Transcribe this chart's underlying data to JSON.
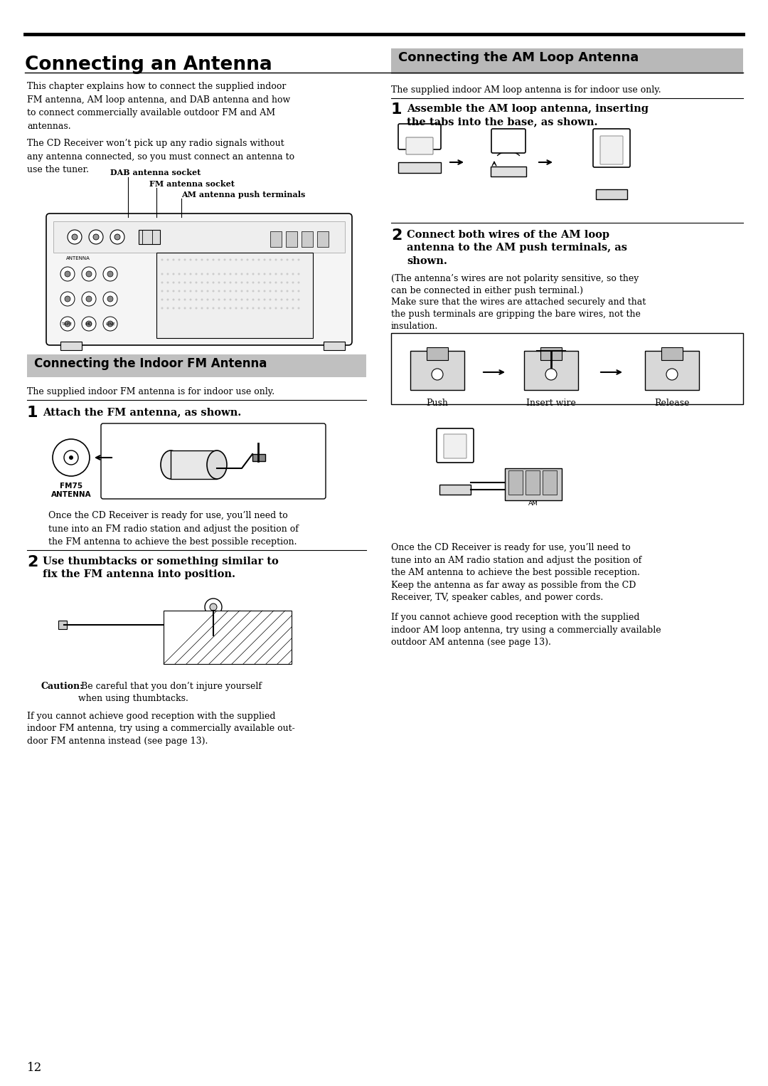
{
  "page_number": "12",
  "main_title": "Connecting an Antenna",
  "bg_color": "#ffffff",
  "text_color": "#000000",
  "section_bg_color": "#cccccc",
  "left_col": {
    "intro_para1": "This chapter explains how to connect the supplied indoor\nFM antenna, AM loop antenna, and DAB antenna and how\nto connect commercially available outdoor FM and AM\nantennas.",
    "intro_para2": "The CD Receiver won’t pick up any radio signals without\nany antenna connected, so you must connect an antenna to\nuse the tuner.",
    "dab_label": "DAB antenna socket",
    "fm_label": "FM antenna socket",
    "am_label": "AM antenna push terminals",
    "section_title": "Connecting the Indoor FM Antenna",
    "section_subtitle": "The supplied indoor FM antenna is for indoor use only.",
    "step1_num": "1",
    "step1_text": "Attach the FM antenna, as shown.",
    "fm_socket_label": "FM75\nANTENNA",
    "step1_note": "Once the CD Receiver is ready for use, you’ll need to\ntune into an FM radio station and adjust the position of\nthe FM antenna to achieve the best possible reception.",
    "step2_num": "2",
    "step2_text": "Use thumbtacks or something similar to\nfix the FM antenna into position.",
    "caution_bold": "Caution:",
    "caution_text": " Be careful that you don’t injure yourself\nwhen using thumbtacks.",
    "fm_note": "If you cannot achieve good reception with the supplied\nindoor FM antenna, try using a commercially available out-\ndoor FM antenna instead (see page 13)."
  },
  "right_col": {
    "section_title": "Connecting the AM Loop Antenna",
    "section_subtitle": "The supplied indoor AM loop antenna is for indoor use only.",
    "step1_num": "1",
    "step1_text": "Assemble the AM loop antenna, inserting\nthe tabs into the base, as shown.",
    "step2_num": "2",
    "step2_text": "Connect both wires of the AM loop\nantenna to the AM push terminals, as\nshown.",
    "step2_note1": "(The antenna’s wires are not polarity sensitive, so they\ncan be connected in either push terminal.)",
    "step2_note2": "Make sure that the wires are attached securely and that\nthe push terminals are gripping the bare wires, not the\ninsulation.",
    "push_label": "Push",
    "insert_label": "Insert wire",
    "release_label": "Release",
    "am_note1": "Once the CD Receiver is ready for use, you’ll need to\ntune into an AM radio station and adjust the position of\nthe AM antenna to achieve the best possible reception.\nKeep the antenna as far away as possible from the CD\nReceiver, TV, speaker cables, and power cords.",
    "am_note2": "If you cannot achieve good reception with the supplied\nindoor AM loop antenna, try using a commercially available\noutdoor AM antenna (see page 13)."
  }
}
